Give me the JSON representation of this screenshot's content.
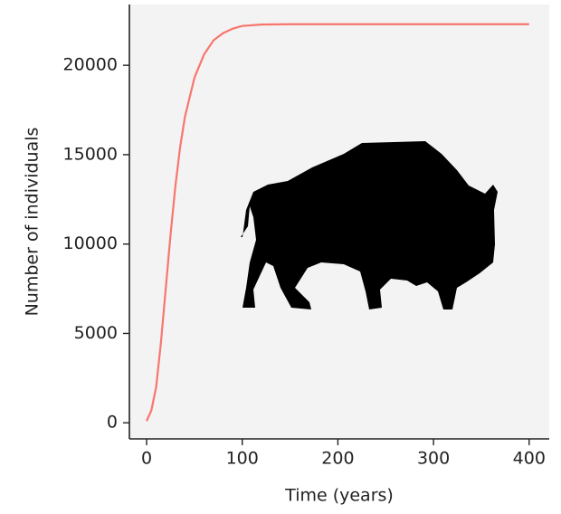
{
  "chart_data": {
    "type": "line",
    "xlabel": "Time (years)",
    "ylabel": "Number of individuals",
    "x": [
      0,
      5,
      10,
      15,
      20,
      25,
      30,
      35,
      40,
      50,
      60,
      70,
      80,
      90,
      100,
      120,
      150,
      200,
      300,
      400
    ],
    "values": [
      100,
      700,
      2000,
      4500,
      7500,
      10500,
      13200,
      15400,
      17100,
      19300,
      20600,
      21400,
      21800,
      22050,
      22200,
      22280,
      22300,
      22300,
      22300,
      22300
    ],
    "color": "#f8766d",
    "xlim": [
      -18,
      421
    ],
    "ylim": [
      -900,
      23400
    ],
    "xticks": [
      0,
      100,
      200,
      300,
      400
    ],
    "yticks": [
      0,
      5000,
      10000,
      15000,
      20000
    ]
  }
}
